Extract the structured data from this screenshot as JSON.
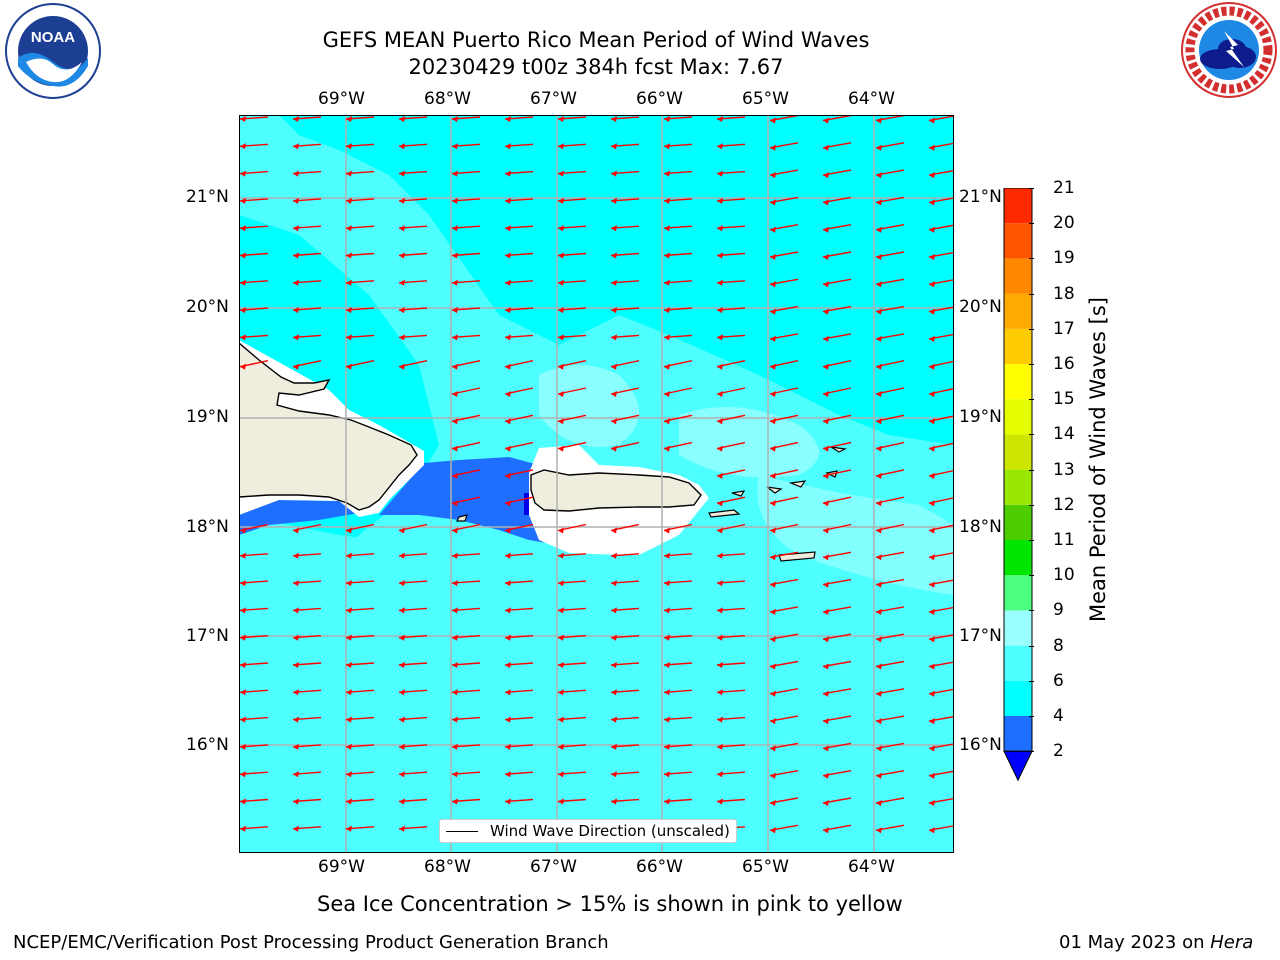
{
  "title": {
    "line1": "GEFS MEAN Puerto Rico Mean Period of Wind Waves",
    "line2": "20230429 t00z 384h fcst   Max: 7.67"
  },
  "logos": {
    "left": "noaa-logo",
    "left_text": "NOAA",
    "left_ring_text": "NATIONAL OCEANIC AND ATMOSPHERIC ADMINISTRATION · U.S. DEPARTMENT OF COMMERCE",
    "right": "nws-logo",
    "right_ring_text": "NATIONAL WEATHER SERVICE"
  },
  "map": {
    "lon_labels": [
      "69°W",
      "68°W",
      "67°W",
      "66°W",
      "65°W",
      "64°W"
    ],
    "lat_labels": [
      "21°N",
      "20°N",
      "19°N",
      "18°N",
      "17°N",
      "16°N"
    ],
    "legend": "Wind Wave Direction (unscaled)",
    "colors": {
      "background": "#00ffff",
      "light": "#4dffff",
      "lighter": "#99ffff",
      "deep": "#1f6fff",
      "deepest": "#0000e6",
      "land": "#efeede",
      "arrow": "#ff0000",
      "grid": "#b0b0b0"
    }
  },
  "colorbar": {
    "label": "Mean Period of Wind Waves [s]",
    "ticks": [
      "2",
      "4",
      "6",
      "8",
      "9",
      "10",
      "11",
      "12",
      "13",
      "14",
      "15",
      "16",
      "17",
      "18",
      "19",
      "20",
      "21"
    ],
    "colors": [
      "#1e6eff",
      "#00ffff",
      "#4dffff",
      "#99ffff",
      "#4dff7f",
      "#00e600",
      "#4dcc00",
      "#99e600",
      "#cce600",
      "#e6ff00",
      "#ffff00",
      "#ffcc00",
      "#ffaa00",
      "#ff8800",
      "#ff5500",
      "#ff2a00"
    ],
    "extend_color": "#0000ff"
  },
  "note": "Sea Ice Concentration > 15% is shown in pink to yellow",
  "footer": {
    "left": "NCEP/EMC/Verification Post Processing Product Generation Branch",
    "right_date": "01 May 2023 on ",
    "right_machine": "Hera"
  }
}
